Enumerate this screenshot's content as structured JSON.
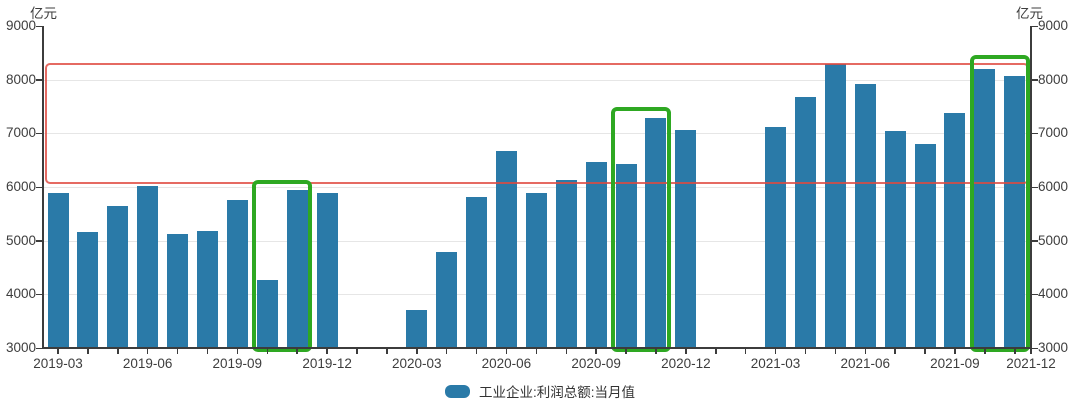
{
  "unit_left": "亿元",
  "unit_right": "亿元",
  "legend": {
    "label": "工业企业:利润总额:当月值"
  },
  "colors": {
    "bar": "#2a7aa8",
    "red_band": "rgba(223,73,64,0.82)",
    "green_box": "#2ea822",
    "grid": "#e6e6e6",
    "axis": "#3c3c3c",
    "text": "#3d3d3d"
  },
  "chart_data": {
    "type": "bar",
    "title": "",
    "xlabel": "",
    "ylabel": "亿元",
    "ylim": [
      3000,
      9000
    ],
    "y_ticks": [
      3000,
      4000,
      5000,
      6000,
      7000,
      8000,
      9000
    ],
    "grid": true,
    "legend_position": "bottom",
    "x_tick_labels": [
      "2019-03",
      "2019-06",
      "2019-09",
      "2019-12",
      "2020-03",
      "2020-06",
      "2020-09",
      "2020-12",
      "2021-03",
      "2021-06",
      "2021-09",
      "2021-12"
    ],
    "series": [
      {
        "name": "工业企业:利润总额:当月值",
        "points": [
          {
            "month": "2019-03",
            "value": 5895
          },
          {
            "month": "2019-04",
            "value": 5154
          },
          {
            "month": "2019-05",
            "value": 5656
          },
          {
            "month": "2019-06",
            "value": 6019
          },
          {
            "month": "2019-07",
            "value": 5127
          },
          {
            "month": "2019-08",
            "value": 5178
          },
          {
            "month": "2019-09",
            "value": 5756
          },
          {
            "month": "2019-10",
            "value": 4276
          },
          {
            "month": "2019-11",
            "value": 5939
          },
          {
            "month": "2019-12",
            "value": 5884
          },
          {
            "month": "2020-03",
            "value": 3711
          },
          {
            "month": "2020-04",
            "value": 4781
          },
          {
            "month": "2020-05",
            "value": 5823
          },
          {
            "month": "2020-06",
            "value": 6666
          },
          {
            "month": "2020-07",
            "value": 5895
          },
          {
            "month": "2020-08",
            "value": 6128
          },
          {
            "month": "2020-09",
            "value": 6464
          },
          {
            "month": "2020-10",
            "value": 6429
          },
          {
            "month": "2020-11",
            "value": 7293
          },
          {
            "month": "2020-12",
            "value": 7071
          },
          {
            "month": "2021-03",
            "value": 7112
          },
          {
            "month": "2021-04",
            "value": 7686
          },
          {
            "month": "2021-05",
            "value": 8299
          },
          {
            "month": "2021-06",
            "value": 7918
          },
          {
            "month": "2021-07",
            "value": 7037
          },
          {
            "month": "2021-08",
            "value": 6803
          },
          {
            "month": "2021-09",
            "value": 7388
          },
          {
            "month": "2021-10",
            "value": 8204
          },
          {
            "month": "2021-11",
            "value": 8060
          }
        ]
      }
    ],
    "annotations": {
      "red_band": {
        "low": 6060,
        "high": 8320
      },
      "green_boxes": [
        {
          "months": [
            "2019-10",
            "2019-11"
          ],
          "top_value": 6140
        },
        {
          "months": [
            "2020-10",
            "2020-11"
          ],
          "top_value": 7500
        },
        {
          "months": [
            "2021-10",
            "2021-11"
          ],
          "top_value": 8460
        }
      ]
    }
  }
}
